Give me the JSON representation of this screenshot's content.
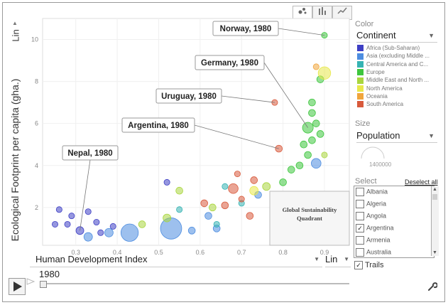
{
  "chart_data": {
    "type": "scatter",
    "title": "",
    "xlabel": "Human Development Index",
    "ylabel": "Ecological Footprint per capita (gha.)",
    "xlim": [
      0.22,
      0.96
    ],
    "ylim": [
      0.2,
      11
    ],
    "x_ticks": [
      "0.3",
      "0.4",
      "0.5",
      "0.6",
      "0.7",
      "0.8",
      "0.9"
    ],
    "y_ticks": [
      "2",
      "4",
      "6",
      "8",
      "10"
    ],
    "x_tick_values": [
      0.3,
      0.4,
      0.5,
      0.6,
      0.7,
      0.8,
      0.9
    ],
    "y_tick_values": [
      2,
      4,
      6,
      8,
      10
    ],
    "grid": true,
    "year": "1980",
    "series": [
      {
        "name": "Africa (Sub-Saharan)",
        "color": "#3e3fc4",
        "points": [
          {
            "x": 0.26,
            "y": 1.9,
            "size": 1
          },
          {
            "x": 0.28,
            "y": 1.2,
            "size": 1
          },
          {
            "x": 0.31,
            "y": 0.9,
            "size": 3
          },
          {
            "x": 0.35,
            "y": 1.3,
            "size": 1
          },
          {
            "x": 0.29,
            "y": 1.6,
            "size": 1
          },
          {
            "x": 0.33,
            "y": 1.8,
            "size": 1
          },
          {
            "x": 0.39,
            "y": 1.1,
            "size": 1
          },
          {
            "x": 0.25,
            "y": 1.2,
            "size": 1
          },
          {
            "x": 0.36,
            "y": 0.8,
            "size": 1
          },
          {
            "x": 0.52,
            "y": 3.2,
            "size": 1
          }
        ]
      },
      {
        "name": "Asia (excluding Middle East)",
        "color": "#4d8de0",
        "points": [
          {
            "x": 0.43,
            "y": 0.8,
            "size": 28
          },
          {
            "x": 0.53,
            "y": 1.0,
            "size": 45
          },
          {
            "x": 0.38,
            "y": 0.8,
            "size": 4
          },
          {
            "x": 0.33,
            "y": 0.6,
            "size": 4
          },
          {
            "x": 0.88,
            "y": 4.1,
            "size": 6
          },
          {
            "x": 0.58,
            "y": 0.9,
            "size": 2
          },
          {
            "x": 0.64,
            "y": 1.0,
            "size": 2
          },
          {
            "x": 0.62,
            "y": 1.6,
            "size": 2
          },
          {
            "x": 0.74,
            "y": 2.6,
            "size": 2
          }
        ]
      },
      {
        "name": "Central America and Caribbean",
        "color": "#35b3b3",
        "points": [
          {
            "x": 0.55,
            "y": 1.9,
            "size": 1
          },
          {
            "x": 0.7,
            "y": 2.2,
            "size": 1
          },
          {
            "x": 0.66,
            "y": 3.0,
            "size": 1
          },
          {
            "x": 0.64,
            "y": 1.2,
            "size": 1
          }
        ]
      },
      {
        "name": "Europe",
        "color": "#3ec63e",
        "points": [
          {
            "x": 0.86,
            "y": 5.8,
            "size": 8
          },
          {
            "x": 0.9,
            "y": 10.2,
            "size": 1
          },
          {
            "x": 0.87,
            "y": 6.5,
            "size": 2
          },
          {
            "x": 0.85,
            "y": 5.0,
            "size": 2
          },
          {
            "x": 0.86,
            "y": 4.5,
            "size": 2
          },
          {
            "x": 0.84,
            "y": 4.0,
            "size": 2
          },
          {
            "x": 0.87,
            "y": 5.2,
            "size": 2
          },
          {
            "x": 0.82,
            "y": 3.8,
            "size": 2
          },
          {
            "x": 0.88,
            "y": 6.0,
            "size": 2
          },
          {
            "x": 0.89,
            "y": 5.5,
            "size": 2
          },
          {
            "x": 0.87,
            "y": 7.0,
            "size": 2
          },
          {
            "x": 0.8,
            "y": 3.2,
            "size": 2
          },
          {
            "x": 0.89,
            "y": 8.1,
            "size": 2
          }
        ]
      },
      {
        "name": "Middle East and North Africa",
        "color": "#a9d63e",
        "points": [
          {
            "x": 0.46,
            "y": 1.2,
            "size": 2
          },
          {
            "x": 0.52,
            "y": 1.5,
            "size": 3
          },
          {
            "x": 0.63,
            "y": 2.0,
            "size": 2
          },
          {
            "x": 0.55,
            "y": 2.8,
            "size": 2
          },
          {
            "x": 0.76,
            "y": 3.0,
            "size": 3
          },
          {
            "x": 0.9,
            "y": 4.5,
            "size": 1
          }
        ]
      },
      {
        "name": "North America",
        "color": "#e8e84a",
        "points": [
          {
            "x": 0.9,
            "y": 8.4,
            "size": 12
          },
          {
            "x": 0.73,
            "y": 2.8,
            "size": 4
          }
        ]
      },
      {
        "name": "Oceania",
        "color": "#f0a53c",
        "points": [
          {
            "x": 0.88,
            "y": 8.7,
            "size": 1
          }
        ]
      },
      {
        "name": "South America",
        "color": "#d85a3c",
        "points": [
          {
            "x": 0.79,
            "y": 4.8,
            "size": 2
          },
          {
            "x": 0.78,
            "y": 7.0,
            "size": 1
          },
          {
            "x": 0.68,
            "y": 2.9,
            "size": 6
          },
          {
            "x": 0.66,
            "y": 2.1,
            "size": 2
          },
          {
            "x": 0.73,
            "y": 3.3,
            "size": 2
          },
          {
            "x": 0.7,
            "y": 2.4,
            "size": 1
          },
          {
            "x": 0.72,
            "y": 1.6,
            "size": 2
          },
          {
            "x": 0.61,
            "y": 2.2,
            "size": 2
          },
          {
            "x": 0.69,
            "y": 3.6,
            "size": 1
          }
        ]
      }
    ],
    "annotations": [
      {
        "label": "Norway, 1980",
        "x": 0.9,
        "y": 10.2
      },
      {
        "label": "Germany, 1980",
        "x": 0.86,
        "y": 5.8
      },
      {
        "label": "Uruguay, 1980",
        "x": 0.78,
        "y": 7.0
      },
      {
        "label": "Argentina, 1980",
        "x": 0.79,
        "y": 4.8
      },
      {
        "label": "Nepal, 1980",
        "x": 0.31,
        "y": 0.9
      }
    ],
    "quadrant_label": "Global Sustainability Quadrant"
  },
  "ui": {
    "y_scale": "Lin",
    "x_scale": "Lin",
    "x_axis_select": "Human Development Index",
    "year": "1980",
    "color_label": "Color",
    "color_value": "Continent",
    "size_label": "Size",
    "size_value": "Population",
    "size_number": "1400000",
    "select_label": "Select",
    "deselect_all": "Deselect all",
    "select_items": [
      {
        "name": "Albania",
        "checked": false
      },
      {
        "name": "Algeria",
        "checked": false
      },
      {
        "name": "Angola",
        "checked": false
      },
      {
        "name": "Argentina",
        "checked": true
      },
      {
        "name": "Armenia",
        "checked": false
      },
      {
        "name": "Australia",
        "checked": false
      }
    ],
    "trails_label": "Trails",
    "trails_checked": true,
    "legend_labels": [
      "Africa (Sub-Saharan)",
      "Asia (excluding Middle ...",
      "Central America and C...",
      "Europe",
      "Middle East and North ...",
      "North America",
      "Oceania",
      "South America"
    ],
    "check_mark": "✓",
    "dropdown_arrow": "▼",
    "scroll_up": "▲",
    "scroll_down": "▼",
    "y_scale_arrow": "▲",
    "icons": {
      "play": "play-icon",
      "wrench": "wrench-icon",
      "bubble_tab": "bubble-chart-icon",
      "bar_tab": "bar-chart-icon",
      "line_tab": "line-chart-icon"
    }
  }
}
